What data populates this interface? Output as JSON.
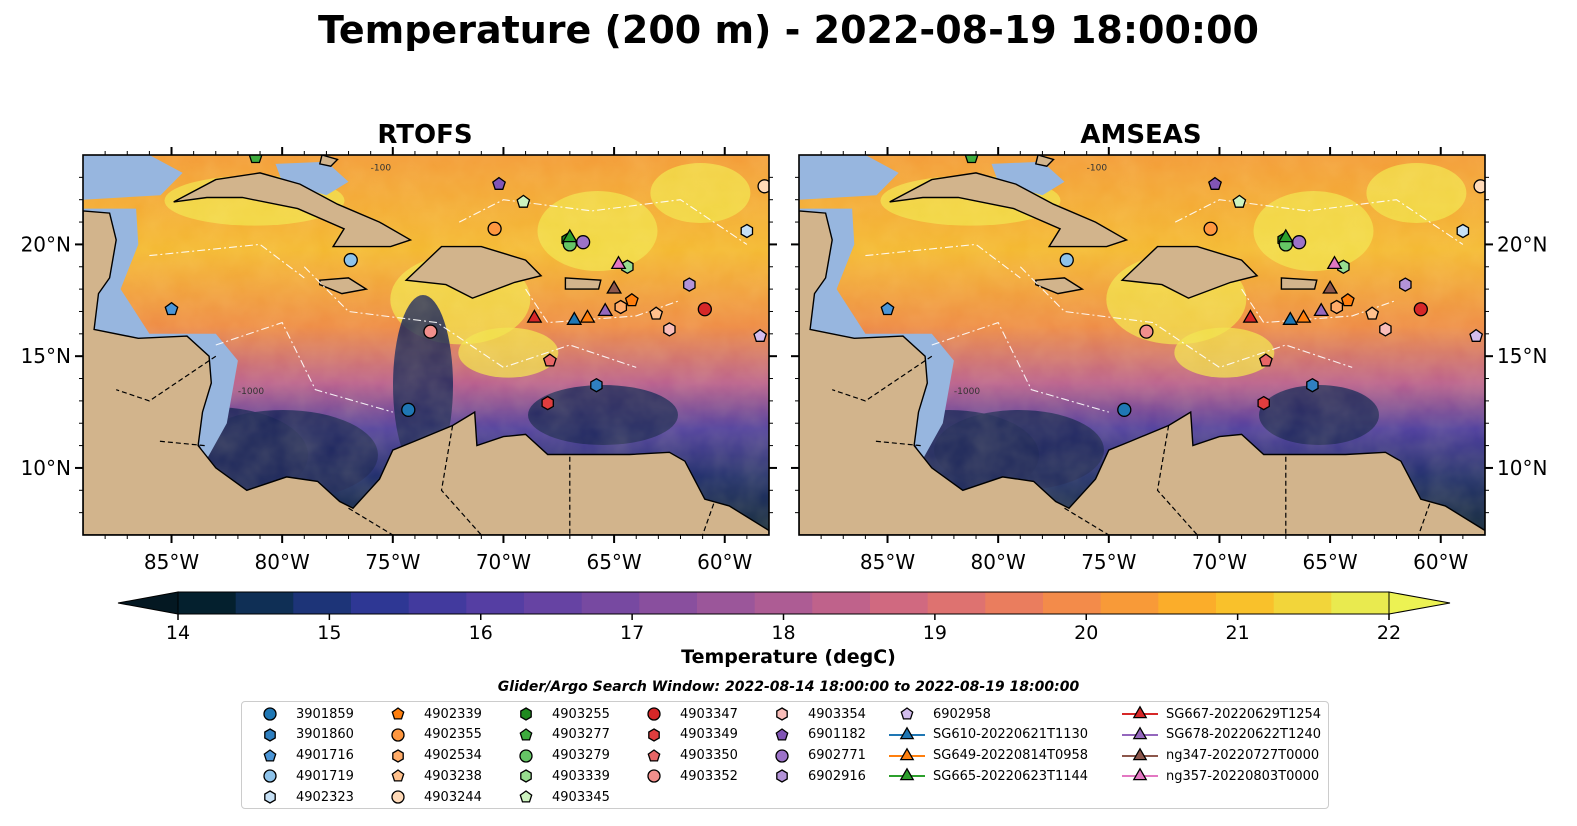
{
  "title": "Temperature (200 m) - 2022-08-19 18:00:00",
  "chart_data": {
    "type": "heatmap",
    "panels": [
      {
        "title": "RTOFS"
      },
      {
        "title": "AMSEAS"
      }
    ],
    "lon_range": [
      -89,
      -58
    ],
    "lat_range": [
      7,
      24
    ],
    "x_ticks": [
      "85°W",
      "80°W",
      "75°W",
      "70°W",
      "65°W",
      "60°W"
    ],
    "x_tick_values": [
      -85,
      -80,
      -75,
      -70,
      -65,
      -60
    ],
    "y_ticks": [
      "10°N",
      "15°N",
      "20°N"
    ],
    "y_tick_values": [
      10,
      15,
      20
    ],
    "contour_labels": [
      "-100",
      "-1000"
    ],
    "colorbar": {
      "label": "Temperature (degC)",
      "ticks": [
        "14",
        "15",
        "16",
        "17",
        "18",
        "19",
        "20",
        "21",
        "22"
      ],
      "vmin": 14,
      "vmax": 22,
      "colors": [
        "#04202e",
        "#0f2f55",
        "#1d3478",
        "#2e3794",
        "#423a9e",
        "#553ea3",
        "#6643a3",
        "#7749a1",
        "#894f9e",
        "#9b569a",
        "#ad5c94",
        "#bf628b",
        "#d06980",
        "#de7270",
        "#ea7d5e",
        "#f38b4a",
        "#f89a38",
        "#fbad2a",
        "#f9c12b",
        "#f2d53a",
        "#e9ea4f"
      ]
    },
    "legend_title": "Glider/Argo Search Window: 2022-08-14 18:00:00 to 2022-08-19 18:00:00",
    "legend": [
      {
        "label": "3901859",
        "marker": "circle",
        "color": "#1f77b4"
      },
      {
        "label": "3901860",
        "marker": "hexagon",
        "color": "#2f7fc0"
      },
      {
        "label": "4901716",
        "marker": "pentagon",
        "color": "#4b95d6"
      },
      {
        "label": "4901719",
        "marker": "circle",
        "color": "#8ec3ea"
      },
      {
        "label": "4902323",
        "marker": "hexagon",
        "color": "#c6e0f5"
      },
      {
        "label": "4902339",
        "marker": "pentagon",
        "color": "#ff7f0e"
      },
      {
        "label": "4902355",
        "marker": "circle",
        "color": "#ff973f"
      },
      {
        "label": "4902534",
        "marker": "hexagon",
        "color": "#ffac69"
      },
      {
        "label": "4903238",
        "marker": "pentagon",
        "color": "#ffc18d"
      },
      {
        "label": "4903244",
        "marker": "circle",
        "color": "#ffdab8"
      },
      {
        "label": "4903255",
        "marker": "hexagon",
        "color": "#1f8a1f"
      },
      {
        "label": "4903277",
        "marker": "pentagon",
        "color": "#3eac3e"
      },
      {
        "label": "4903279",
        "marker": "circle",
        "color": "#66c566"
      },
      {
        "label": "4903339",
        "marker": "hexagon",
        "color": "#98dc8f"
      },
      {
        "label": "4903345",
        "marker": "pentagon",
        "color": "#cdf3bf"
      },
      {
        "label": "4903347",
        "marker": "circle",
        "color": "#d62728"
      },
      {
        "label": "4903349",
        "marker": "hexagon",
        "color": "#e03d3e"
      },
      {
        "label": "4903350",
        "marker": "pentagon",
        "color": "#e86666"
      },
      {
        "label": "4903352",
        "marker": "circle",
        "color": "#f28f8c"
      },
      {
        "label": "4903354",
        "marker": "hexagon",
        "color": "#f9bdb9"
      },
      {
        "label": "6901182",
        "marker": "pentagon",
        "color": "#8155b6"
      },
      {
        "label": "6902771",
        "marker": "circle",
        "color": "#9c72c8"
      },
      {
        "label": "6902916",
        "marker": "hexagon",
        "color": "#b393d8"
      },
      {
        "label": "6902958",
        "marker": "pentagon",
        "color": "#d3bdee"
      },
      {
        "label": "SG610-20220621T1130",
        "marker": "triangle",
        "color": "#1f77b4"
      },
      {
        "label": "SG649-20220814T0958",
        "marker": "triangle",
        "color": "#ff7f0e"
      },
      {
        "label": "SG665-20220623T1144",
        "marker": "triangle",
        "color": "#2ca02c"
      },
      {
        "label": "SG667-20220629T1254",
        "marker": "triangle",
        "color": "#d62728"
      },
      {
        "label": "SG678-20220622T1240",
        "marker": "triangle",
        "color": "#9467bd"
      },
      {
        "label": "ng347-20220727T0000",
        "marker": "triangle",
        "color": "#8c564b"
      },
      {
        "label": "ng357-20220803T0000",
        "marker": "triangle",
        "color": "#e377c2"
      }
    ],
    "points": [
      {
        "id": "3901859",
        "lon": -74.3,
        "lat": 12.6
      },
      {
        "id": "3901860",
        "lon": -65.8,
        "lat": 13.7
      },
      {
        "id": "4901716",
        "lon": -85.0,
        "lat": 17.1
      },
      {
        "id": "4901719",
        "lon": -76.9,
        "lat": 19.3
      },
      {
        "id": "4902323",
        "lon": -59.0,
        "lat": 20.6
      },
      {
        "id": "4902339",
        "lon": -64.2,
        "lat": 17.5
      },
      {
        "id": "4902355",
        "lon": -70.4,
        "lat": 20.7
      },
      {
        "id": "4902534",
        "lon": -64.7,
        "lat": 17.2
      },
      {
        "id": "4903238",
        "lon": -63.1,
        "lat": 16.9
      },
      {
        "id": "4903244",
        "lon": -58.2,
        "lat": 22.6
      },
      {
        "id": "4903255",
        "lon": -67.1,
        "lat": 20.2
      },
      {
        "id": "4903277",
        "lon": -81.2,
        "lat": 23.9
      },
      {
        "id": "4903279",
        "lon": -67.0,
        "lat": 20.0
      },
      {
        "id": "4903339",
        "lon": -64.4,
        "lat": 19.0
      },
      {
        "id": "4903345",
        "lon": -69.1,
        "lat": 21.9
      },
      {
        "id": "4903347",
        "lon": -60.9,
        "lat": 17.1
      },
      {
        "id": "4903349",
        "lon": -68.0,
        "lat": 12.9
      },
      {
        "id": "4903350",
        "lon": -67.9,
        "lat": 14.8
      },
      {
        "id": "4903352",
        "lon": -73.3,
        "lat": 16.1
      },
      {
        "id": "4903354",
        "lon": -62.5,
        "lat": 16.2
      },
      {
        "id": "6901182",
        "lon": -70.2,
        "lat": 22.7
      },
      {
        "id": "6902771",
        "lon": -66.4,
        "lat": 20.1
      },
      {
        "id": "6902916",
        "lon": -61.6,
        "lat": 18.2
      },
      {
        "id": "6902958",
        "lon": -58.4,
        "lat": 15.9
      },
      {
        "id": "SG610-20220621T1130",
        "lon": -66.8,
        "lat": 16.6
      },
      {
        "id": "SG649-20220814T0958",
        "lon": -66.2,
        "lat": 16.7
      },
      {
        "id": "SG665-20220623T1144",
        "lon": -67.0,
        "lat": 20.3
      },
      {
        "id": "SG667-20220629T1254",
        "lon": -68.6,
        "lat": 16.7
      },
      {
        "id": "SG678-20220622T1240",
        "lon": -65.4,
        "lat": 17.0
      },
      {
        "id": "ng347-20220727T0000",
        "lon": -65.0,
        "lat": 18.0
      },
      {
        "id": "ng357-20220803T0000",
        "lon": -64.8,
        "lat": 19.1
      }
    ]
  }
}
